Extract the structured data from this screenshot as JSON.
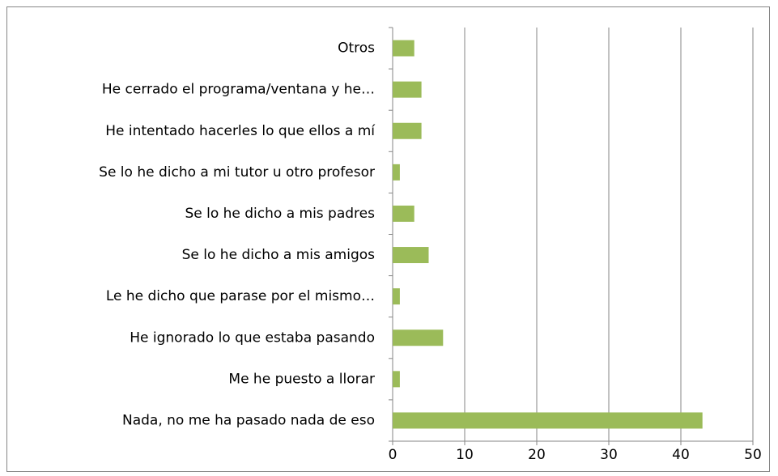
{
  "chart_data": {
    "type": "barh",
    "categories": [
      "Otros",
      "He cerrado el programa/ventana y he…",
      "He intentado hacerles lo que ellos a mí",
      "Se lo he dicho a mi tutor u otro profesor",
      "Se lo he dicho a mis padres",
      "Se lo he dicho a mis amigos",
      "Le he dicho que parase por el mismo…",
      "He ignorado lo que estaba pasando",
      "Me he puesto a llorar",
      "Nada, no me ha pasado nada de eso"
    ],
    "values": [
      3,
      4,
      4,
      1,
      3,
      5,
      1,
      7,
      1,
      43
    ],
    "color": "#9bbb59",
    "xlim": [
      0,
      50
    ],
    "xticks": [
      0,
      10,
      20,
      30,
      40,
      50
    ],
    "grid": true
  }
}
